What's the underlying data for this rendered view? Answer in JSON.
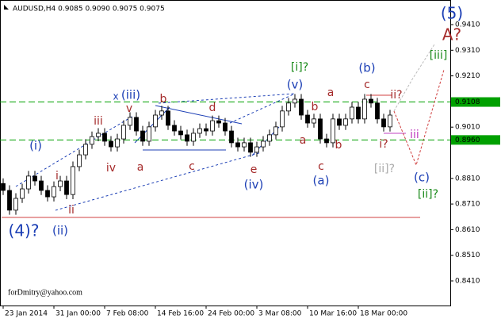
{
  "chart_data": {
    "type": "candlestick",
    "title": "AUDUSD,H4  0.9085 0.9090 0.9075 0.9075",
    "watermark": "forDmitry@yahoo.com",
    "up_color": "#ffffff",
    "down_color": "#000000",
    "xlim": [
      -0.5,
      70.5
    ],
    "xticks": [
      {
        "value": 0,
        "label": "23 Jan 2014"
      },
      {
        "value": 8,
        "label": "31 Jan 00:00"
      },
      {
        "value": 16,
        "label": "7 Feb 08:00"
      },
      {
        "value": 24,
        "label": "14 Feb 16:00"
      },
      {
        "value": 32,
        "label": "24 Feb 00:00"
      },
      {
        "value": 40,
        "label": "3 Mar 08:00"
      },
      {
        "value": 48,
        "label": "10 Mar 16:00"
      },
      {
        "value": 56,
        "label": "18 Mar 00:00"
      }
    ],
    "ylim": [
      0.8314,
      0.9506
    ],
    "yticks": [
      {
        "value": 0.941,
        "label": "0.9410"
      },
      {
        "value": 0.931,
        "label": "0.9310"
      },
      {
        "value": 0.921,
        "label": "0.9210"
      },
      {
        "value": 0.901,
        "label": "0.9010"
      },
      {
        "value": 0.881,
        "label": "0.8810"
      },
      {
        "value": 0.871,
        "label": "0.8710"
      },
      {
        "value": 0.861,
        "label": "0.8610"
      },
      {
        "value": 0.851,
        "label": "0.8510"
      },
      {
        "value": 0.841,
        "label": "0.8410"
      }
    ],
    "levels": [
      {
        "value": 0.9108,
        "label": "0.9108",
        "color": "#00a000"
      },
      {
        "value": 0.896,
        "label": "0.8960",
        "color": "#00a000"
      }
    ],
    "open": [
      0.879,
      0.8763,
      0.8686,
      0.8732,
      0.8769,
      0.8819,
      0.88,
      0.8763,
      0.8738,
      0.8778,
      0.88,
      0.8747,
      0.8856,
      0.8902,
      0.8943,
      0.8973,
      0.8986,
      0.8955,
      0.8933,
      0.8964,
      0.9017,
      0.9048,
      0.8995,
      0.8955,
      0.9011,
      0.9057,
      0.9073,
      0.9017,
      0.8995,
      0.898,
      0.8955,
      0.8986,
      0.9004,
      0.8995,
      0.9035,
      0.9026,
      0.8995,
      0.8949,
      0.8933,
      0.8949,
      0.8912,
      0.8933,
      0.8955,
      0.898,
      0.9011,
      0.9073,
      0.9104,
      0.9119,
      0.9057,
      0.9026,
      0.9042,
      0.8964,
      0.8949,
      0.9042,
      0.9017,
      0.9042,
      0.9088,
      0.9042,
      0.9119,
      0.9104,
      0.9042,
      0.9011
    ],
    "high": [
      0.881,
      0.8783,
      0.8752,
      0.8789,
      0.8839,
      0.8839,
      0.882,
      0.8783,
      0.8798,
      0.882,
      0.882,
      0.8876,
      0.8922,
      0.8963,
      0.8993,
      0.9006,
      0.9006,
      0.8975,
      0.8984,
      0.9037,
      0.9068,
      0.9068,
      0.9015,
      0.9031,
      0.9077,
      0.9093,
      0.9093,
      0.9037,
      0.9015,
      0.9,
      0.9006,
      0.9024,
      0.9024,
      0.9055,
      0.9055,
      0.9046,
      0.9015,
      0.8969,
      0.8969,
      0.8969,
      0.8953,
      0.8975,
      0.9,
      0.9031,
      0.9093,
      0.9124,
      0.9139,
      0.9139,
      0.9077,
      0.9062,
      0.9062,
      0.8984,
      0.9062,
      0.9062,
      0.9062,
      0.9108,
      0.9108,
      0.9139,
      0.9139,
      0.9124,
      0.9062,
      0.9077
    ],
    "low": [
      0.8745,
      0.8668,
      0.8668,
      0.8714,
      0.8751,
      0.8782,
      0.8745,
      0.872,
      0.872,
      0.876,
      0.8729,
      0.8729,
      0.8838,
      0.8884,
      0.8925,
      0.8955,
      0.8937,
      0.8915,
      0.8915,
      0.8946,
      0.8999,
      0.8977,
      0.8937,
      0.8937,
      0.8993,
      0.9039,
      0.8999,
      0.8977,
      0.8962,
      0.8937,
      0.8937,
      0.8968,
      0.8977,
      0.8977,
      0.9008,
      0.8977,
      0.8931,
      0.8915,
      0.8915,
      0.8894,
      0.8894,
      0.8915,
      0.8937,
      0.8962,
      0.8993,
      0.9055,
      0.9086,
      0.9039,
      0.9008,
      0.9008,
      0.8946,
      0.8931,
      0.8931,
      0.8999,
      0.8999,
      0.9024,
      0.9024,
      0.9024,
      0.9086,
      0.9024,
      0.8993,
      0.8993
    ],
    "close": [
      0.8763,
      0.8686,
      0.8732,
      0.8769,
      0.8819,
      0.88,
      0.8763,
      0.8738,
      0.8778,
      0.88,
      0.8747,
      0.8856,
      0.8902,
      0.8943,
      0.8973,
      0.8986,
      0.8955,
      0.8933,
      0.8964,
      0.9017,
      0.9048,
      0.8995,
      0.8955,
      0.9011,
      0.9057,
      0.9073,
      0.9017,
      0.8995,
      0.898,
      0.8955,
      0.8986,
      0.9004,
      0.8995,
      0.9035,
      0.9026,
      0.8995,
      0.8949,
      0.8933,
      0.8949,
      0.8912,
      0.8933,
      0.8955,
      0.898,
      0.9011,
      0.9073,
      0.9104,
      0.9119,
      0.9057,
      0.9026,
      0.9042,
      0.8964,
      0.8949,
      0.9042,
      0.9017,
      0.9042,
      0.9088,
      0.9042,
      0.9119,
      0.9104,
      0.9042,
      0.9011,
      0.9057
    ],
    "annotations": [
      {
        "text": "(5)",
        "color": "#1c3fb5"
      },
      {
        "text": "A?",
        "color": "#a52a2a"
      },
      {
        "text": "[iii]",
        "color": "#1a8a1a"
      },
      {
        "text": "[i]?",
        "color": "#1a8a1a"
      },
      {
        "text": "(v)",
        "color": "#1c3fb5"
      },
      {
        "text": "(b)",
        "color": "#1c3fb5"
      },
      {
        "text": "c",
        "color": "#a52a2a"
      },
      {
        "text": "a",
        "color": "#a52a2a"
      },
      {
        "text": "b",
        "color": "#a52a2a"
      },
      {
        "text": "ii?",
        "color": "#a52a2a"
      },
      {
        "text": "iii",
        "color": "#c040c0"
      },
      {
        "text": "i?",
        "color": "#a52a2a"
      },
      {
        "text": "a",
        "color": "#a52a2a"
      },
      {
        "text": "b",
        "color": "#a52a2a"
      },
      {
        "text": "c",
        "color": "#a52a2a"
      },
      {
        "text": "(a)",
        "color": "#1c3fb5"
      },
      {
        "text": "[ii]?",
        "color": "#aaaaaa"
      },
      {
        "text": "(c)",
        "color": "#1c3fb5"
      },
      {
        "text": "[ii]?",
        "color": "#1a8a1a"
      },
      {
        "text": "e",
        "color": "#a52a2a"
      },
      {
        "text": "(iv)",
        "color": "#1c3fb5"
      },
      {
        "text": "d",
        "color": "#a52a2a"
      },
      {
        "text": "b",
        "color": "#a52a2a"
      },
      {
        "text": "x",
        "color": "#1c3fb5"
      },
      {
        "text": "(iii)",
        "color": "#1c3fb5"
      },
      {
        "text": "v",
        "color": "#a52a2a"
      },
      {
        "text": "iii",
        "color": "#a52a2a"
      },
      {
        "text": "iv",
        "color": "#a52a2a"
      },
      {
        "text": "a",
        "color": "#a52a2a"
      },
      {
        "text": "c",
        "color": "#a52a2a"
      },
      {
        "text": "i",
        "color": "#a52a2a"
      },
      {
        "text": "(i)",
        "color": "#1c3fb5"
      },
      {
        "text": "ii",
        "color": "#a52a2a"
      },
      {
        "text": "(ii)",
        "color": "#1c3fb5"
      },
      {
        "text": "(4)?",
        "color": "#1c3fb5"
      }
    ]
  }
}
